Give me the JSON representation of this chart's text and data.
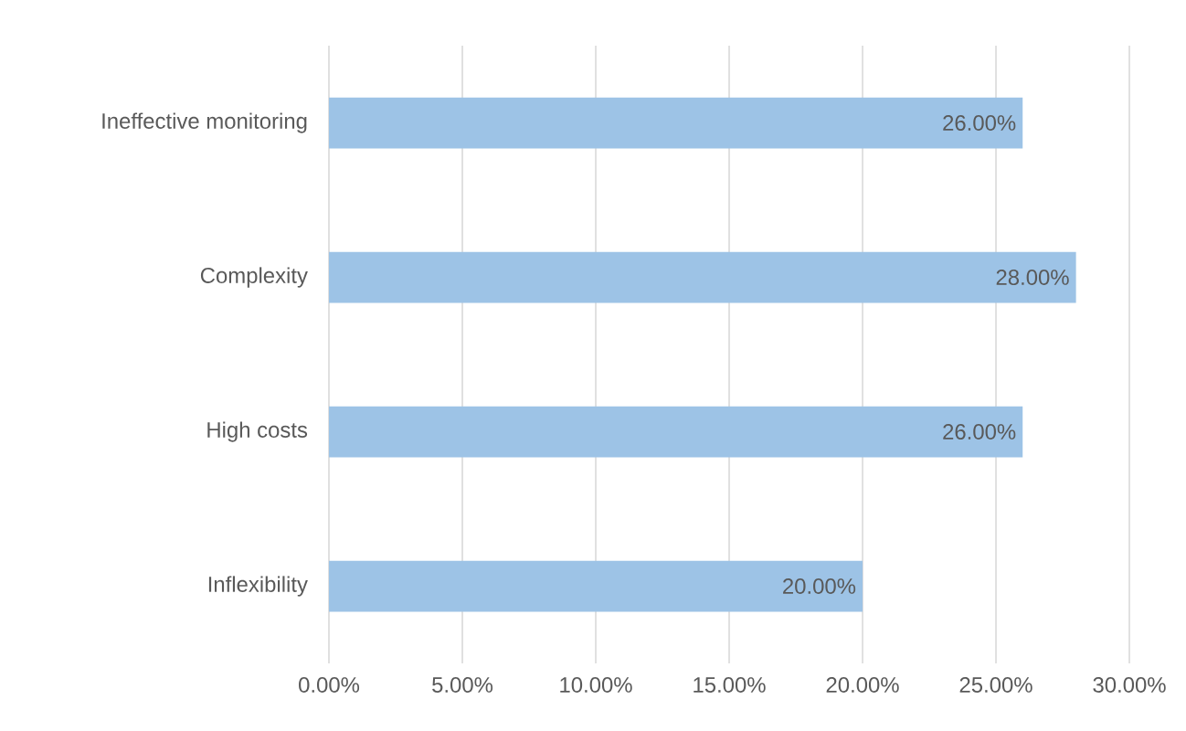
{
  "chart_data": {
    "type": "bar",
    "orientation": "horizontal",
    "categories": [
      "Ineffective monitoring",
      "Complexity",
      "High costs",
      "Inflexibility"
    ],
    "values": [
      26,
      28,
      26,
      20
    ],
    "value_labels": [
      "26.00%",
      "28.00%",
      "26.00%",
      "20.00%"
    ],
    "color": "#9dc3e6",
    "xlim": [
      0,
      30
    ],
    "xticks": [
      {
        "value": 0,
        "label": "0.00%"
      },
      {
        "value": 5,
        "label": "5.00%"
      },
      {
        "value": 10,
        "label": "10.00%"
      },
      {
        "value": 15,
        "label": "15.00%"
      },
      {
        "value": 20,
        "label": "20.00%"
      },
      {
        "value": 25,
        "label": "25.00%"
      },
      {
        "value": 30,
        "label": "30.00%"
      }
    ],
    "grid": "x"
  }
}
